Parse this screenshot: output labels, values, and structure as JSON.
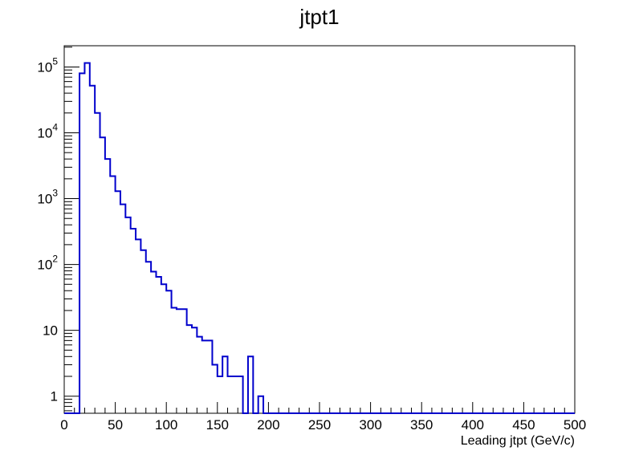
{
  "chart_data": {
    "type": "histogram",
    "title": "jtpt1",
    "xlabel": "Leading jtpt (GeV/c)",
    "ylabel": "",
    "xlim": [
      0,
      500
    ],
    "ylim": [
      0.55,
      210000
    ],
    "yscale": "log",
    "grid": false,
    "legend": "none",
    "line_color": "#0000cc",
    "x_ticks": [
      {
        "value": 0,
        "label": "0"
      },
      {
        "value": 50,
        "label": "50"
      },
      {
        "value": 100,
        "label": "100"
      },
      {
        "value": 150,
        "label": "150"
      },
      {
        "value": 200,
        "label": "200"
      },
      {
        "value": 250,
        "label": "250"
      },
      {
        "value": 300,
        "label": "300"
      },
      {
        "value": 350,
        "label": "350"
      },
      {
        "value": 400,
        "label": "400"
      },
      {
        "value": 450,
        "label": "450"
      },
      {
        "value": 500,
        "label": "500"
      }
    ],
    "y_ticks": [
      {
        "value": 1,
        "base": "1",
        "exp": ""
      },
      {
        "value": 10,
        "base": "10",
        "exp": ""
      },
      {
        "value": 100,
        "base": "10",
        "exp": "2"
      },
      {
        "value": 1000,
        "base": "10",
        "exp": "3"
      },
      {
        "value": 10000,
        "base": "10",
        "exp": "4"
      },
      {
        "value": 100000,
        "base": "10",
        "exp": "5"
      }
    ],
    "bin_width": 5,
    "bins": [
      {
        "x0": 0,
        "y": 0
      },
      {
        "x0": 5,
        "y": 0
      },
      {
        "x0": 10,
        "y": 0
      },
      {
        "x0": 15,
        "y": 80000
      },
      {
        "x0": 20,
        "y": 115000
      },
      {
        "x0": 25,
        "y": 52000
      },
      {
        "x0": 30,
        "y": 20000
      },
      {
        "x0": 35,
        "y": 8500
      },
      {
        "x0": 40,
        "y": 4000
      },
      {
        "x0": 45,
        "y": 2200
      },
      {
        "x0": 50,
        "y": 1300
      },
      {
        "x0": 55,
        "y": 820
      },
      {
        "x0": 60,
        "y": 520
      },
      {
        "x0": 65,
        "y": 350
      },
      {
        "x0": 70,
        "y": 240
      },
      {
        "x0": 75,
        "y": 165
      },
      {
        "x0": 80,
        "y": 110
      },
      {
        "x0": 85,
        "y": 78
      },
      {
        "x0": 90,
        "y": 65
      },
      {
        "x0": 95,
        "y": 50
      },
      {
        "x0": 100,
        "y": 40
      },
      {
        "x0": 105,
        "y": 22
      },
      {
        "x0": 110,
        "y": 21
      },
      {
        "x0": 115,
        "y": 21
      },
      {
        "x0": 120,
        "y": 12
      },
      {
        "x0": 125,
        "y": 11
      },
      {
        "x0": 130,
        "y": 8
      },
      {
        "x0": 135,
        "y": 7
      },
      {
        "x0": 140,
        "y": 7
      },
      {
        "x0": 145,
        "y": 3
      },
      {
        "x0": 150,
        "y": 2
      },
      {
        "x0": 155,
        "y": 4
      },
      {
        "x0": 160,
        "y": 2
      },
      {
        "x0": 165,
        "y": 2
      },
      {
        "x0": 170,
        "y": 2
      },
      {
        "x0": 175,
        "y": 0
      },
      {
        "x0": 180,
        "y": 4
      },
      {
        "x0": 185,
        "y": 0
      },
      {
        "x0": 190,
        "y": 1
      },
      {
        "x0": 195,
        "y": 0
      }
    ]
  }
}
